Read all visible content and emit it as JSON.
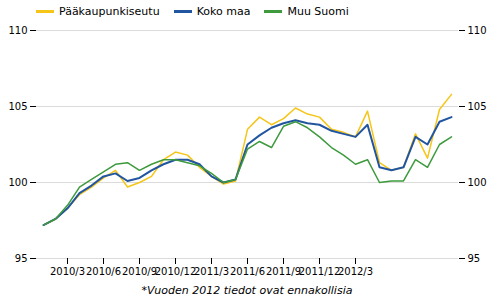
{
  "chart_data": {
    "type": "line",
    "footnote": "*Vuoden 2012 tiedot ovat ennakollisia",
    "categories": [
      null,
      null,
      "2010/3",
      null,
      null,
      "2010/6",
      null,
      null,
      "2010/9",
      null,
      null,
      "2010/12",
      null,
      null,
      "2011/3",
      null,
      null,
      "2011/6",
      null,
      null,
      "2011/9",
      null,
      null,
      "2011/12",
      null,
      null,
      "2012/3",
      null,
      null,
      null,
      null,
      null,
      null,
      null,
      null
    ],
    "series": [
      {
        "name": "Pääkaupunkiseutu",
        "color": "#F5C518",
        "values": [
          97.2,
          97.6,
          98.3,
          99.2,
          99.7,
          100.3,
          100.8,
          99.7,
          100.0,
          100.4,
          101.5,
          102.0,
          101.8,
          101.0,
          100.4,
          99.9,
          100.1,
          103.5,
          104.3,
          103.8,
          104.2,
          104.9,
          104.5,
          104.3,
          103.5,
          103.3,
          103.0,
          104.7,
          101.3,
          100.8,
          101.0,
          103.2,
          101.6,
          104.8,
          105.8
        ]
      },
      {
        "name": "Koko maa",
        "color": "#2155A0",
        "values": [
          97.2,
          97.6,
          98.3,
          99.3,
          99.8,
          100.4,
          100.6,
          100.1,
          100.3,
          100.8,
          101.2,
          101.5,
          101.5,
          101.2,
          100.4,
          100.0,
          100.2,
          102.5,
          103.1,
          103.6,
          103.9,
          104.1,
          103.9,
          103.8,
          103.4,
          103.2,
          103.0,
          103.8,
          101.0,
          100.8,
          101.0,
          103.0,
          102.5,
          104.0,
          104.3
        ]
      },
      {
        "name": "Muu Suomi",
        "color": "#3D9A3D",
        "values": [
          97.2,
          97.6,
          98.5,
          99.7,
          100.2,
          100.7,
          101.2,
          101.3,
          100.8,
          101.2,
          101.5,
          101.5,
          101.3,
          101.1,
          100.6,
          100.0,
          100.2,
          102.2,
          102.7,
          102.3,
          103.7,
          104.0,
          103.6,
          103.0,
          102.3,
          101.8,
          101.2,
          101.5,
          100.0,
          100.1,
          100.1,
          101.5,
          101.0,
          102.5,
          103.0
        ]
      }
    ],
    "ylim": [
      95,
      110
    ],
    "yticks": [
      95,
      100,
      105,
      110
    ],
    "y2lim": [
      95,
      110
    ],
    "y2ticks": [
      95,
      100,
      105,
      110
    ],
    "grid": true,
    "legend": "top-left"
  }
}
